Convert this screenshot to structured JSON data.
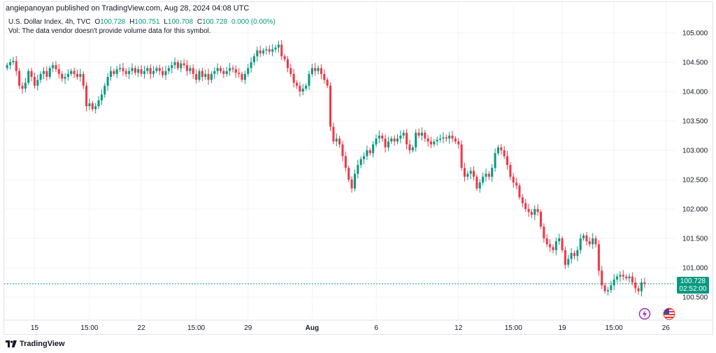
{
  "header": {
    "published_line": "angiepanoyan published on TradingView.com, Aug 28, 2024 04:08 UTC",
    "symbol_line": "U.S. Dollar Index, 4h, TVC",
    "open_label": "O",
    "open_value": "100.728",
    "high_label": "H",
    "high_value": "100.751",
    "low_label": "L",
    "low_value": "100.708",
    "close_label": "C",
    "close_value": "100.728",
    "change": "0.000 (0.00%)",
    "vol_line": "Vol: The data vendor doesn't provide volume data for this symbol."
  },
  "price_tag": {
    "price": "100.728",
    "countdown": "02:52:00"
  },
  "footer": {
    "brand": "TradingView"
  },
  "icons": {
    "logo": "tradingview-logo-icon",
    "bolt": "lightning-bolt-icon",
    "flag": "us-flag-icon"
  },
  "colors": {
    "up": "#089981",
    "down": "#f23645",
    "grid": "#f0f3fa",
    "price_line": "#089981"
  },
  "chart_data": {
    "type": "candlestick",
    "title": "U.S. Dollar Index, 4h, TVC",
    "ylim": [
      100.2,
      105.2
    ],
    "y_ticks": [
      "100.500",
      "101.000",
      "101.500",
      "102.000",
      "102.500",
      "103.000",
      "103.500",
      "104.000",
      "104.500",
      "105.000"
    ],
    "y_tick_values": [
      100.5,
      101.0,
      101.5,
      102.0,
      102.5,
      103.0,
      103.5,
      104.0,
      104.5,
      105.0
    ],
    "x_ticks": [
      {
        "label": "15",
        "index": 9,
        "bold": false
      },
      {
        "label": "15:00",
        "index": 27,
        "bold": false
      },
      {
        "label": "22",
        "index": 44,
        "bold": false
      },
      {
        "label": "15:00",
        "index": 62,
        "bold": false
      },
      {
        "label": "29",
        "index": 79,
        "bold": false
      },
      {
        "label": "Aug",
        "index": 100,
        "bold": true
      },
      {
        "label": "6",
        "index": 121,
        "bold": false
      },
      {
        "label": "12",
        "index": 148,
        "bold": false
      },
      {
        "label": "15:00",
        "index": 166,
        "bold": false
      },
      {
        "label": "19",
        "index": 182,
        "bold": false
      },
      {
        "label": "15:00",
        "index": 199,
        "bold": false
      },
      {
        "label": "26",
        "index": 216,
        "bold": false
      },
      {
        "label": "29",
        "index": 237,
        "bold": false
      }
    ],
    "last_price": 100.728,
    "grid": true,
    "closes": [
      104.45,
      104.5,
      104.52,
      104.35,
      104.1,
      104.05,
      104.15,
      104.35,
      104.25,
      104.1,
      104.2,
      104.3,
      104.35,
      104.25,
      104.4,
      104.45,
      104.38,
      104.3,
      104.22,
      104.25,
      104.3,
      104.35,
      104.3,
      104.25,
      104.3,
      104.1,
      103.75,
      103.8,
      103.7,
      103.75,
      103.85,
      103.95,
      104.1,
      104.25,
      104.35,
      104.3,
      104.38,
      104.4,
      104.35,
      104.3,
      104.35,
      104.4,
      104.32,
      104.38,
      104.3,
      104.35,
      104.4,
      104.3,
      104.35,
      104.4,
      104.35,
      104.28,
      104.35,
      104.4,
      104.45,
      104.5,
      104.4,
      104.48,
      104.45,
      104.35,
      104.4,
      104.3,
      104.2,
      104.35,
      104.25,
      104.3,
      104.2,
      104.3,
      104.35,
      104.4,
      104.35,
      104.3,
      104.35,
      104.4,
      104.38,
      104.32,
      104.3,
      104.2,
      104.3,
      104.4,
      104.5,
      104.6,
      104.7,
      104.65,
      104.7,
      104.72,
      104.68,
      104.72,
      104.75,
      104.8,
      104.6,
      104.55,
      104.4,
      104.3,
      104.15,
      104.1,
      104.0,
      104.05,
      104.1,
      104.3,
      104.4,
      104.35,
      104.4,
      104.3,
      104.2,
      104.1,
      103.4,
      103.15,
      103.2,
      103.1,
      102.9,
      102.7,
      102.5,
      102.35,
      102.6,
      102.75,
      102.85,
      102.9,
      103.0,
      102.95,
      103.1,
      103.2,
      103.25,
      103.2,
      103.05,
      103.15,
      103.2,
      103.15,
      103.2,
      103.25,
      103.3,
      103.1,
      103.0,
      103.05,
      103.3,
      103.25,
      103.3,
      103.2,
      103.15,
      103.1,
      103.15,
      103.18,
      103.2,
      103.22,
      103.2,
      103.25,
      103.2,
      103.15,
      103.1,
      102.7,
      102.55,
      102.6,
      102.65,
      102.55,
      102.35,
      102.45,
      102.55,
      102.6,
      102.55,
      102.7,
      102.95,
      103.05,
      103.0,
      102.9,
      102.75,
      102.55,
      102.45,
      102.4,
      102.2,
      102.1,
      102.0,
      101.95,
      101.9,
      102.0,
      101.95,
      101.7,
      101.5,
      101.4,
      101.35,
      101.3,
      101.45,
      101.5,
      101.3,
      101.05,
      101.15,
      101.25,
      101.2,
      101.3,
      101.5,
      101.55,
      101.45,
      101.4,
      101.5,
      101.4,
      100.95,
      100.7,
      100.6,
      100.62,
      100.7,
      100.8,
      100.85,
      100.88,
      100.85,
      100.82,
      100.85,
      100.75,
      100.65,
      100.6,
      100.75,
      100.728
    ]
  }
}
